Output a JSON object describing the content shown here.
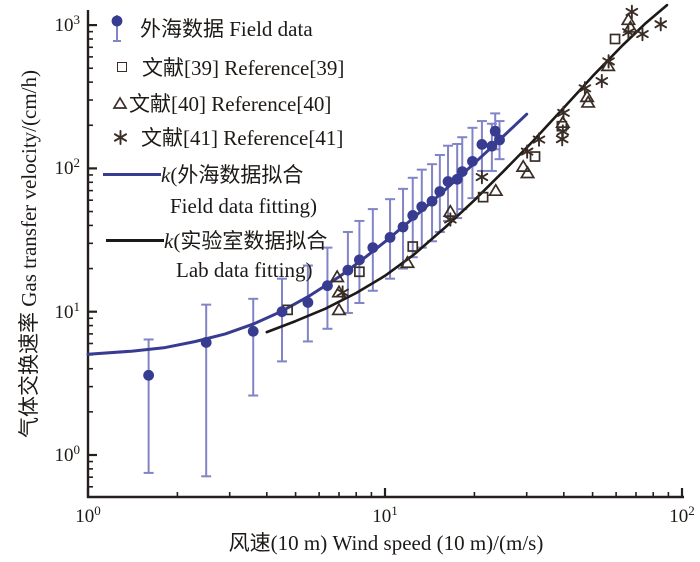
{
  "axis": {
    "tick_base": "10",
    "x_label": "风速(10 m) Wind speed (10 m)/(m/s)",
    "y_label": "气体交换速率 Gas transfer velocity/(cm/h)"
  },
  "legend": {
    "field": "外海数据 Field data",
    "ref39": "文献[39] Reference[39]",
    "ref40": "文献[40] Reference[40]",
    "ref41": "文献[41] Reference[41]",
    "fit_field_k": "k",
    "fit_field_line1": "(外海数据拟合",
    "fit_field_line2": "Field data fitting)",
    "fit_lab_k": "k",
    "fit_lab_line1": "(实验室数据拟合",
    "fit_lab_line2": "Lab data fitting)"
  },
  "colors": {
    "field_blue": "#383c90",
    "errorbar_blue": "#8184c6",
    "ref_marker": "#3a2d26",
    "lab_black": "#1d1916",
    "axis": "#241f1c"
  },
  "chart_data": {
    "type": "scatter",
    "x_scale": "log",
    "y_scale": "log",
    "xlim": [
      1,
      100
    ],
    "ylim": [
      0.5,
      1300
    ],
    "grid": false,
    "legend_position": "upper-left",
    "xlabel": "风速(10 m) Wind speed (10 m)/(m/s)",
    "ylabel": "气体交换速率 Gas transfer velocity/(cm/h)",
    "x_ticks": [
      {
        "value": 1,
        "exp": "0"
      },
      {
        "value": 10,
        "exp": "1"
      },
      {
        "value": 100,
        "exp": "2"
      }
    ],
    "y_ticks": [
      {
        "value": 1,
        "exp": "0"
      },
      {
        "value": 10,
        "exp": "1"
      },
      {
        "value": 100,
        "exp": "2"
      },
      {
        "value": 1000,
        "exp": "3"
      }
    ],
    "series": [
      {
        "name": "外海数据 Field data",
        "type": "scatter",
        "marker": "circle",
        "color": "#383c90",
        "errorbar_color": "#8184c6",
        "points": [
          [
            1.6,
            3.6,
            0.75,
            6.4
          ],
          [
            2.5,
            6.1,
            0.71,
            11.2
          ],
          [
            3.6,
            7.3,
            2.6,
            12.3
          ],
          [
            4.5,
            10.0,
            4.5,
            17
          ],
          [
            5.5,
            11.6,
            6.2,
            21
          ],
          [
            6.4,
            15.2,
            7.6,
            28
          ],
          [
            7.5,
            19.5,
            9.8,
            36
          ],
          [
            8.2,
            23,
            11.5,
            43
          ],
          [
            9.1,
            28,
            14,
            52
          ],
          [
            10.4,
            33,
            17,
            61
          ],
          [
            11.5,
            39,
            20,
            72
          ],
          [
            12.4,
            47,
            24,
            86
          ],
          [
            13.3,
            54,
            28,
            98
          ],
          [
            14.4,
            59,
            31,
            107
          ],
          [
            15.3,
            69,
            36,
            124
          ],
          [
            16.3,
            81,
            43,
            144
          ],
          [
            17.5,
            84,
            45,
            148
          ],
          [
            18.2,
            95,
            52,
            165
          ],
          [
            19.7,
            112,
            62,
            192
          ],
          [
            21.2,
            147,
            96,
            214
          ],
          [
            22.9,
            143,
            96,
            205
          ],
          [
            23.5,
            182,
            136,
            242
          ],
          [
            24.3,
            158,
            116,
            214
          ]
        ]
      },
      {
        "name": "文献[39] Reference[39]",
        "type": "scatter",
        "marker": "square",
        "color": "#3a2d26",
        "points": [
          [
            4.7,
            10.3
          ],
          [
            8.2,
            19
          ],
          [
            12.4,
            28.5
          ],
          [
            21.4,
            63
          ],
          [
            32,
            121
          ],
          [
            39.4,
            197
          ],
          [
            59.5,
            800
          ]
        ]
      },
      {
        "name": "文献[40] Reference[40]",
        "type": "scatter",
        "marker": "triangle",
        "color": "#3a2d26",
        "points": [
          [
            6.9,
            17.5
          ],
          [
            7.0,
            13.7
          ],
          [
            7.0,
            10.3
          ],
          [
            11.9,
            22
          ],
          [
            16.6,
            50
          ],
          [
            23.6,
            70
          ],
          [
            29.2,
            103
          ],
          [
            30.2,
            93
          ],
          [
            39.7,
            209
          ],
          [
            47.9,
            316
          ],
          [
            48.3,
            289
          ],
          [
            56.4,
            520
          ],
          [
            66,
            1090
          ],
          [
            67,
            965
          ]
        ]
      },
      {
        "name": "文献[41] Reference[41]",
        "type": "scatter",
        "marker": "asterisk",
        "color": "#3a2d26",
        "points": [
          [
            7.2,
            13.6
          ],
          [
            16.6,
            44
          ],
          [
            21.2,
            87
          ],
          [
            30.1,
            131
          ],
          [
            33,
            159
          ],
          [
            39.5,
            160
          ],
          [
            39.7,
            181
          ],
          [
            39.9,
            244
          ],
          [
            47.1,
            362
          ],
          [
            53.7,
            407
          ],
          [
            56.6,
            558
          ],
          [
            66,
            892
          ],
          [
            67.8,
            1236
          ],
          [
            73.6,
            866
          ],
          [
            84.8,
            1014
          ]
        ]
      },
      {
        "name": "k(外海数据拟合 Field data fitting)",
        "type": "line",
        "color": "#383c90",
        "width": 3,
        "points": [
          [
            1,
            5.05
          ],
          [
            1.4,
            5.3
          ],
          [
            1.8,
            5.6
          ],
          [
            2.3,
            6.2
          ],
          [
            2.9,
            7.0
          ],
          [
            3.6,
            8.2
          ],
          [
            4.5,
            10.1
          ],
          [
            5.6,
            13.0
          ],
          [
            7,
            17.5
          ],
          [
            8.5,
            23.6
          ],
          [
            10,
            30.8
          ],
          [
            12,
            42.2
          ],
          [
            14,
            55.8
          ],
          [
            16.5,
            75.6
          ],
          [
            19,
            98.7
          ],
          [
            22,
            130.6
          ],
          [
            25,
            167.3
          ],
          [
            27.5,
            201.4
          ],
          [
            30,
            238.8
          ]
        ]
      },
      {
        "name": "k(实验室数据拟合 Lab data fitting)",
        "type": "line",
        "color": "#1d1916",
        "width": 2.6,
        "points": [
          [
            4,
            7.2
          ],
          [
            5,
            8.6
          ],
          [
            6.3,
            10.5
          ],
          [
            8,
            13.5
          ],
          [
            10,
            17.8
          ],
          [
            12.5,
            25
          ],
          [
            16,
            39
          ],
          [
            20,
            60
          ],
          [
            25,
            95
          ],
          [
            31.5,
            155
          ],
          [
            40,
            265
          ],
          [
            50,
            440
          ],
          [
            63,
            720
          ],
          [
            75,
            1020
          ],
          [
            89,
            1380
          ]
        ]
      }
    ]
  }
}
